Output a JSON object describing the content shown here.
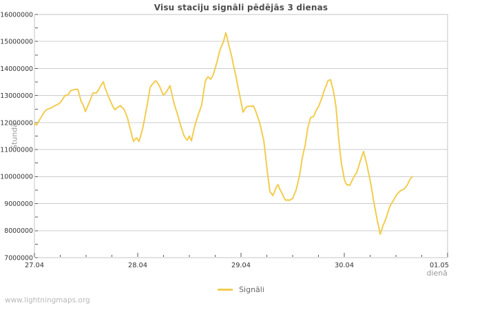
{
  "footer": {
    "watermark": "www.lightningmaps.org"
  },
  "chart_data": {
    "type": "line",
    "title": "Visu staciju signāli pēdējās 3 dienas",
    "xlabel": "dienā",
    "ylabel": "Stundā",
    "x_ticks": [
      "27.04",
      "28.04",
      "29.04",
      "30.04",
      "01.05"
    ],
    "y_ticks": [
      16000000,
      15000000,
      14000000,
      13000000,
      12000000,
      11000000,
      10000000,
      9000000,
      8000000,
      7000000
    ],
    "ylim": [
      7000000,
      16000000
    ],
    "xlim_days": [
      0,
      4
    ],
    "y_minor_step": 500000,
    "x_minor_per_day": 4,
    "grid": "horizontal",
    "legend_position": "bottom-center",
    "colors": {
      "line": "#f2cc4d",
      "grid": "#cccccc",
      "border": "#c4c4c4",
      "tick": "#555555",
      "tick_label": "#333333",
      "title": "#4d4d4d",
      "axis_label": "#999999"
    },
    "series": [
      {
        "name": "Signāli",
        "color": "#f2cc4d",
        "points": [
          [
            0.0,
            11950000
          ],
          [
            0.02,
            11900000
          ],
          [
            0.053,
            12150000
          ],
          [
            0.087,
            12330000
          ],
          [
            0.12,
            12450000
          ],
          [
            0.153,
            12550000
          ],
          [
            0.187,
            12620000
          ],
          [
            0.22,
            12650000
          ],
          [
            0.253,
            12780000
          ],
          [
            0.287,
            12950000
          ],
          [
            0.333,
            13050000
          ],
          [
            0.353,
            13200000
          ],
          [
            0.387,
            13250000
          ],
          [
            0.42,
            13220000
          ],
          [
            0.453,
            12800000
          ],
          [
            0.493,
            12420000
          ],
          [
            0.533,
            12750000
          ],
          [
            0.567,
            13050000
          ],
          [
            0.6,
            13100000
          ],
          [
            0.633,
            13300000
          ],
          [
            0.667,
            13500000
          ],
          [
            0.713,
            13000000
          ],
          [
            0.747,
            12720000
          ],
          [
            0.78,
            12470000
          ],
          [
            0.813,
            12550000
          ],
          [
            0.833,
            12630000
          ],
          [
            0.86,
            12500000
          ],
          [
            0.887,
            12340000
          ],
          [
            0.933,
            11710000
          ],
          [
            0.96,
            11300000
          ],
          [
            0.987,
            11450000
          ],
          [
            1.013,
            11270000
          ],
          [
            1.047,
            11750000
          ],
          [
            1.08,
            12420000
          ],
          [
            1.12,
            13280000
          ],
          [
            1.153,
            13450000
          ],
          [
            1.18,
            13560000
          ],
          [
            1.213,
            13300000
          ],
          [
            1.247,
            13000000
          ],
          [
            1.28,
            13150000
          ],
          [
            1.313,
            13340000
          ],
          [
            1.347,
            12800000
          ],
          [
            1.38,
            12400000
          ],
          [
            1.413,
            11900000
          ],
          [
            1.447,
            11500000
          ],
          [
            1.48,
            11350000
          ],
          [
            1.5,
            11500000
          ],
          [
            1.52,
            11330000
          ],
          [
            1.553,
            11870000
          ],
          [
            1.587,
            12300000
          ],
          [
            1.62,
            12650000
          ],
          [
            1.653,
            13500000
          ],
          [
            1.68,
            13700000
          ],
          [
            1.707,
            13580000
          ],
          [
            1.733,
            13830000
          ],
          [
            1.767,
            14250000
          ],
          [
            1.8,
            14700000
          ],
          [
            1.827,
            15000000
          ],
          [
            1.853,
            15300000
          ],
          [
            1.88,
            14900000
          ],
          [
            1.913,
            14370000
          ],
          [
            1.94,
            13900000
          ],
          [
            1.967,
            13400000
          ],
          [
            2.0,
            12750000
          ],
          [
            2.02,
            12380000
          ],
          [
            2.053,
            12550000
          ],
          [
            2.087,
            12620000
          ],
          [
            2.12,
            12650000
          ],
          [
            2.153,
            12300000
          ],
          [
            2.187,
            11900000
          ],
          [
            2.22,
            11350000
          ],
          [
            2.253,
            10200000
          ],
          [
            2.28,
            9450000
          ],
          [
            2.307,
            9300000
          ],
          [
            2.333,
            9550000
          ],
          [
            2.36,
            9680000
          ],
          [
            2.387,
            9450000
          ],
          [
            2.413,
            9260000
          ],
          [
            2.44,
            9100000
          ],
          [
            2.467,
            9120000
          ],
          [
            2.5,
            9150000
          ],
          [
            2.533,
            9500000
          ],
          [
            2.567,
            10080000
          ],
          [
            2.593,
            10650000
          ],
          [
            2.62,
            11150000
          ],
          [
            2.647,
            11800000
          ],
          [
            2.673,
            12200000
          ],
          [
            2.7,
            12180000
          ],
          [
            2.727,
            12450000
          ],
          [
            2.753,
            12600000
          ],
          [
            2.787,
            12950000
          ],
          [
            2.813,
            13280000
          ],
          [
            2.84,
            13500000
          ],
          [
            2.867,
            13600000
          ],
          [
            2.893,
            13200000
          ],
          [
            2.92,
            12600000
          ],
          [
            2.947,
            11300000
          ],
          [
            2.973,
            10500000
          ],
          [
            3.0,
            9900000
          ],
          [
            3.027,
            9680000
          ],
          [
            3.053,
            9650000
          ],
          [
            3.087,
            9900000
          ],
          [
            3.12,
            10170000
          ],
          [
            3.153,
            10550000
          ],
          [
            3.187,
            10920000
          ],
          [
            3.22,
            10450000
          ],
          [
            3.253,
            9800000
          ],
          [
            3.287,
            9000000
          ],
          [
            3.32,
            8370000
          ],
          [
            3.347,
            7850000
          ],
          [
            3.373,
            8200000
          ],
          [
            3.407,
            8500000
          ],
          [
            3.44,
            8850000
          ],
          [
            3.473,
            9100000
          ],
          [
            3.507,
            9350000
          ],
          [
            3.54,
            9450000
          ],
          [
            3.573,
            9550000
          ],
          [
            3.607,
            9700000
          ],
          [
            3.64,
            9900000
          ],
          [
            3.66,
            10000000
          ]
        ]
      }
    ]
  }
}
